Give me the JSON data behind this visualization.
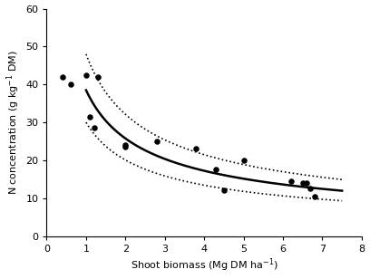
{
  "scatter_x": [
    0.4,
    0.6,
    1.0,
    1.1,
    1.2,
    1.3,
    2.0,
    2.0,
    2.8,
    3.8,
    4.3,
    4.5,
    5.0,
    6.2,
    6.5,
    6.6,
    6.7,
    6.8
  ],
  "scatter_y": [
    42,
    40,
    42.5,
    31.5,
    28.5,
    42,
    24,
    23.5,
    25,
    23,
    17.5,
    12,
    20,
    14.5,
    14,
    14,
    12.5,
    10.5
  ],
  "fit_a": 38.5,
  "fit_b": -0.58,
  "ci_upper_a": 48.0,
  "ci_upper_b": -0.58,
  "ci_lower_a": 30.0,
  "ci_lower_b": -0.58,
  "x_start": 1.0,
  "x_end": 7.5,
  "xlabel": "Shoot biomass (Mg DM ha$^{-1}$)",
  "ylabel": "N concentration (g kg$^{-1}$ DM)",
  "xlim": [
    0,
    8
  ],
  "ylim": [
    0,
    60
  ],
  "xticks": [
    0,
    1,
    2,
    3,
    4,
    5,
    6,
    7,
    8
  ],
  "yticks": [
    0,
    10,
    20,
    30,
    40,
    50,
    60
  ],
  "scatter_color": "black",
  "line_color": "black",
  "dot_color": "black",
  "bg_color": "white"
}
